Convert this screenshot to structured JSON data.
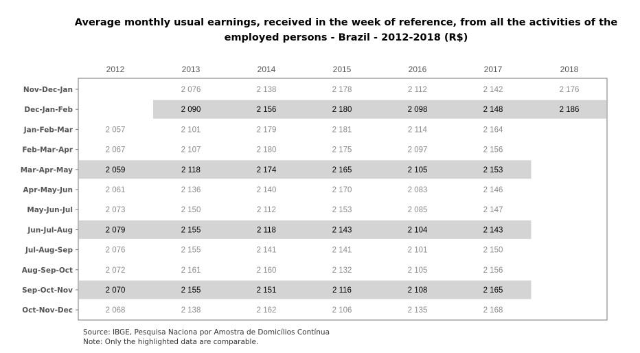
{
  "chart_data": {
    "type": "table",
    "title": "Average monthly usual earnings, received in the week of reference, from all the activities of the employed persons -  Brazil - 2012-2018 (R$)",
    "columns": [
      "2012",
      "2013",
      "2014",
      "2015",
      "2016",
      "2017",
      "2018"
    ],
    "rows": [
      {
        "label": "Nov-Dec-Jan",
        "highlight": false,
        "values": [
          null,
          "2 076",
          "2 138",
          "2 178",
          "2 112",
          "2 142",
          "2 176"
        ]
      },
      {
        "label": "Dec-Jan-Feb",
        "highlight": true,
        "values": [
          null,
          "2 090",
          "2 156",
          "2 180",
          "2 098",
          "2 148",
          "2 186"
        ]
      },
      {
        "label": "Jan-Feb-Mar",
        "highlight": false,
        "values": [
          "2 057",
          "2 101",
          "2 179",
          "2 181",
          "2 114",
          "2 164",
          null
        ]
      },
      {
        "label": "Feb-Mar-Apr",
        "highlight": false,
        "values": [
          "2 067",
          "2 107",
          "2 180",
          "2 175",
          "2 097",
          "2 156",
          null
        ]
      },
      {
        "label": "Mar-Apr-May",
        "highlight": true,
        "values": [
          "2 059",
          "2 118",
          "2 174",
          "2 165",
          "2 105",
          "2 153",
          null
        ]
      },
      {
        "label": "Apr-May-Jun",
        "highlight": false,
        "values": [
          "2 061",
          "2 136",
          "2 140",
          "2 170",
          "2 083",
          "2 146",
          null
        ]
      },
      {
        "label": "May-Jun-Jul",
        "highlight": false,
        "values": [
          "2 073",
          "2 150",
          "2 112",
          "2 153",
          "2 085",
          "2 147",
          null
        ]
      },
      {
        "label": "Jun-Jul-Aug",
        "highlight": true,
        "values": [
          "2 079",
          "2 155",
          "2 118",
          "2 143",
          "2 104",
          "2 143",
          null
        ]
      },
      {
        "label": "Jul-Aug-Sep",
        "highlight": false,
        "values": [
          "2 076",
          "2 155",
          "2 141",
          "2 141",
          "2 101",
          "2 150",
          null
        ]
      },
      {
        "label": "Aug-Sep-Oct",
        "highlight": false,
        "values": [
          "2 072",
          "2 161",
          "2 160",
          "2 132",
          "2 105",
          "2 156",
          null
        ]
      },
      {
        "label": "Sep-Oct-Nov",
        "highlight": true,
        "values": [
          "2 070",
          "2 155",
          "2 151",
          "2 116",
          "2 108",
          "2 165",
          null
        ]
      },
      {
        "label": "Oct-Nov-Dec",
        "highlight": false,
        "values": [
          "2 068",
          "2 138",
          "2 162",
          "2 106",
          "2 135",
          "2 168",
          null
        ]
      }
    ],
    "highlight_color": "#d4d4d4",
    "highlight_text_color": "#000000",
    "normal_text_color": "#8c8c8c"
  },
  "source": "Source: IBGE, Pesquisa Naciona por Amostra de Domicílios Contínua",
  "note": "Note: Only the highlighted data are comparable."
}
